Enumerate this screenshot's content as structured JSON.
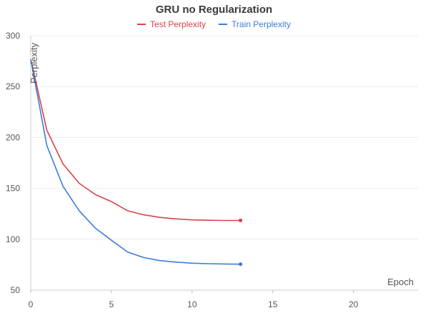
{
  "chart_data": {
    "type": "line",
    "title": "GRU no Regularization",
    "xlabel": "Epoch",
    "ylabel": "Perplexity",
    "xlim": [
      0,
      24
    ],
    "ylim": [
      50,
      300
    ],
    "x_ticks": [
      "0",
      "5",
      "10",
      "15",
      "20"
    ],
    "y_ticks": [
      "50",
      "100",
      "150",
      "200",
      "250",
      "300"
    ],
    "grid": true,
    "legend_position": "top-center",
    "series": [
      {
        "name": "Test Perplexity",
        "color": "#d9424b",
        "x": [
          0,
          1,
          2,
          3,
          4,
          5,
          6,
          7,
          8,
          9,
          10,
          11,
          12,
          13
        ],
        "values": [
          277,
          207,
          174,
          155,
          144,
          137,
          128,
          124,
          121.5,
          120,
          119,
          118.7,
          118.5,
          118.5
        ]
      },
      {
        "name": "Train Perplexity",
        "color": "#3b7dd8",
        "x": [
          0,
          1,
          2,
          3,
          4,
          5,
          6,
          7,
          8,
          9,
          10,
          11,
          12,
          13
        ],
        "values": [
          277,
          192,
          152,
          128,
          111,
          99,
          87.5,
          82,
          79,
          77.5,
          76.5,
          76,
          75.7,
          75.5
        ]
      }
    ]
  }
}
